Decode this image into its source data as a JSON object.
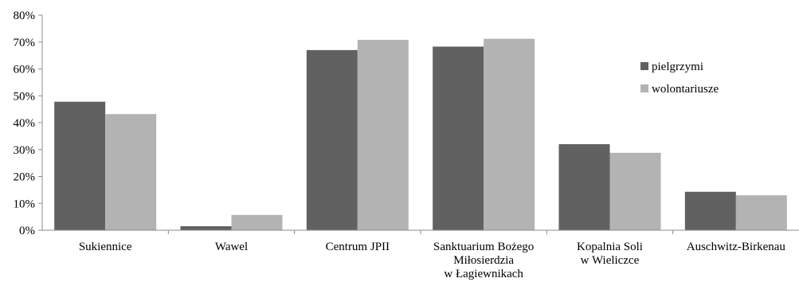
{
  "chart_data": {
    "type": "bar",
    "title": "",
    "xlabel": "",
    "ylabel": "",
    "ylim": [
      0,
      80
    ],
    "ytick_values": [
      0,
      10,
      20,
      30,
      40,
      50,
      60,
      70,
      80
    ],
    "ytick_labels": [
      "0%",
      "10%",
      "20%",
      "30%",
      "40%",
      "50%",
      "60%",
      "70%",
      "80%"
    ],
    "grid": false,
    "legend_position": "right",
    "categories": [
      [
        "Sukiennice"
      ],
      [
        "Wawel"
      ],
      [
        "Centrum JPII"
      ],
      [
        "Sanktuarium Bożego",
        "Miłosierdzia",
        "w Łagiewnikach"
      ],
      [
        "Kopalnia Soli",
        "w Wieliczce"
      ],
      [
        "Auschwitz-Birkenau"
      ]
    ],
    "series": [
      {
        "name": "pielgrzymi",
        "color": "#616161",
        "values": [
          47.8,
          1.5,
          67,
          68.3,
          32,
          14.3
        ]
      },
      {
        "name": "wolontariusze",
        "color": "#b3b3b3",
        "values": [
          43.2,
          5.7,
          70.8,
          71.2,
          28.8,
          13
        ]
      }
    ]
  }
}
